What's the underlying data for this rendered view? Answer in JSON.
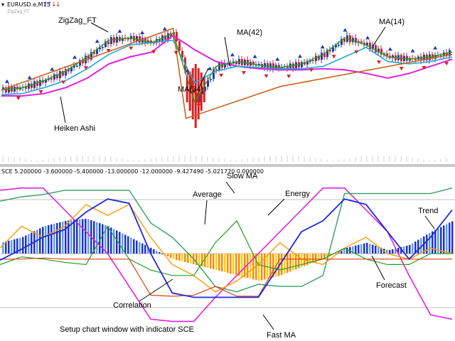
{
  "top_panel": {
    "symbol_label": "EURUSD.e,M15",
    "sub_label": "ZigZag_FT",
    "annotations": [
      {
        "key": "zigzag",
        "text": "ZigZag_FT"
      },
      {
        "key": "ma42",
        "text": "MA(42)"
      },
      {
        "key": "ma14",
        "text": "MA(14)"
      },
      {
        "key": "ma34",
        "text": "MA(34)"
      },
      {
        "key": "heiken",
        "text": "Heiken Ashi"
      }
    ]
  },
  "bottom_panel": {
    "header": "SCE 5.200000 -3.600000 -5.400000 -13.000000 -12.000000 -9.427490 -5.021770 0.000000",
    "annotations": [
      {
        "key": "slowma",
        "text": "Slow MA"
      },
      {
        "key": "average",
        "text": "Average"
      },
      {
        "key": "energy",
        "text": "Energy"
      },
      {
        "key": "trend",
        "text": "Trend"
      },
      {
        "key": "forecast",
        "text": "Forecast"
      },
      {
        "key": "correlation",
        "text": "Correlation"
      },
      {
        "key": "fastma",
        "text": "Fast MA"
      }
    ],
    "caption": "Setup chart window with indicator SCE"
  },
  "colors": {
    "zigzag": "#c8641e",
    "ma42": "#e020e0",
    "ma34": "#20a8e0",
    "ma14": "#20a020",
    "bull": "#1e3cb4",
    "bear": "#dc1e1e",
    "slow_ma": "#e020e0",
    "fast_ma": "#1e28dc",
    "average": "#30a060",
    "energy": "#20a020",
    "forecast": "#ff9a00",
    "correlation": "#e04010"
  },
  "chart_data": [
    {
      "type": "line",
      "series": [
        {
          "name": "MA(42)",
          "values": [
            0.1,
            0.1,
            0.3,
            0.8,
            1.6,
            2.8,
            3.4,
            3.8,
            5.2,
            4.0,
            3.0,
            2.6,
            2.4,
            2.3,
            2.3,
            2.4,
            2.3,
            2.0,
            1.6,
            2.0,
            2.6,
            3.2
          ]
        },
        {
          "name": "MA(34)",
          "values": [
            0.2,
            0.3,
            0.8,
            1.4,
            2.4,
            3.6,
            4.4,
            4.6,
            4.8,
            1.2,
            2.2,
            2.6,
            2.5,
            2.4,
            2.4,
            2.6,
            3.4,
            4.2,
            3.0,
            2.8,
            3.0,
            3.4
          ]
        },
        {
          "name": "MA(14)",
          "values": [
            0.6,
            0.8,
            1.4,
            2.2,
            3.4,
            4.8,
            5.0,
            4.6,
            5.4,
            -0.4,
            2.6,
            3.0,
            2.7,
            2.5,
            2.8,
            3.6,
            5.0,
            4.4,
            3.4,
            3.2,
            3.4,
            3.8
          ]
        }
      ],
      "x": [
        0,
        1,
        2,
        3,
        4,
        5,
        6,
        7,
        8,
        9,
        10,
        11,
        12,
        13,
        14,
        15,
        16,
        17,
        18,
        19,
        20,
        21
      ],
      "ylim": [
        -2,
        7
      ]
    },
    {
      "type": "line",
      "series": [
        {
          "name": "Slow MA",
          "values": [
            5.8,
            6.0,
            6.0,
            4.0,
            2.0,
            0.0,
            -3.0,
            -6.0,
            -6.2,
            -6.2,
            -4.0,
            -2.0,
            0.0,
            2.0,
            4.0,
            6.0,
            6.0,
            4.0,
            2.0,
            -2.0,
            -5.6,
            -6.0
          ]
        },
        {
          "name": "Fast MA",
          "values": [
            -0.6,
            0.4,
            1.5,
            2.2,
            3.8,
            5.0,
            4.6,
            0.0,
            -3.6,
            -4.0,
            -4.0,
            -4.0,
            -4.0,
            -1.0,
            2.0,
            3.0,
            5.0,
            4.5,
            2.0,
            -0.5,
            1.5,
            4.0
          ]
        },
        {
          "name": "Average",
          "values": [
            4.8,
            5.2,
            5.4,
            5.8,
            5.8,
            5.8,
            5.8,
            2.8,
            1.5,
            -0.5,
            -3.0,
            -3.5,
            -2.8,
            -3.0,
            -3.0,
            -2.0,
            5.5,
            5.5,
            5.5,
            5.5,
            5.5,
            6.0
          ]
        },
        {
          "name": "Energy",
          "values": [
            -1.0,
            -0.3,
            -0.5,
            -0.8,
            -1.0,
            2.5,
            -0.5,
            -1.5,
            -2.0,
            -2.0,
            1.0,
            3.0,
            -1.0,
            -1.5,
            -1.0,
            -0.5,
            0.5,
            -0.5,
            -1.0,
            -1.0,
            0.0,
            0.0
          ]
        },
        {
          "name": "Forecast",
          "values": [
            0.5,
            2.5,
            1.5,
            2.5,
            4.5,
            3.5,
            4.5,
            1.5,
            -1.0,
            -2.0,
            -3.5,
            -2.5,
            -1.0,
            1.0,
            -0.5,
            -1.0,
            0.5,
            1.5,
            0.0,
            -0.5,
            0.5,
            0.0
          ]
        },
        {
          "name": "Correlation",
          "values": [
            -0.5,
            -0.5,
            -0.4,
            -0.5,
            -0.5,
            -0.5,
            -0.5,
            -3.8,
            -3.9,
            -3.8,
            -3.0,
            -3.9,
            -3.9,
            -0.5,
            -0.5,
            -0.5,
            -0.5,
            -0.5,
            -0.5,
            -0.5,
            -0.5,
            -0.5
          ]
        },
        {
          "name": "Trend",
          "values": [
            -1.0,
            -1.5,
            -2.5,
            -3.0,
            -3.2,
            -2.5,
            -1.5,
            -0.5,
            0.5,
            1.0,
            1.5,
            2.0,
            2.5,
            2.0,
            1.2,
            0.5,
            -0.5,
            -1.0,
            -0.3,
            -0.8,
            -2.0,
            -3.0
          ]
        }
      ],
      "x": [
        0,
        1,
        2,
        3,
        4,
        5,
        6,
        7,
        8,
        9,
        10,
        11,
        12,
        13,
        14,
        15,
        16,
        17,
        18,
        19,
        20,
        21
      ],
      "ylim": [
        -6.5,
        6.5
      ]
    }
  ]
}
